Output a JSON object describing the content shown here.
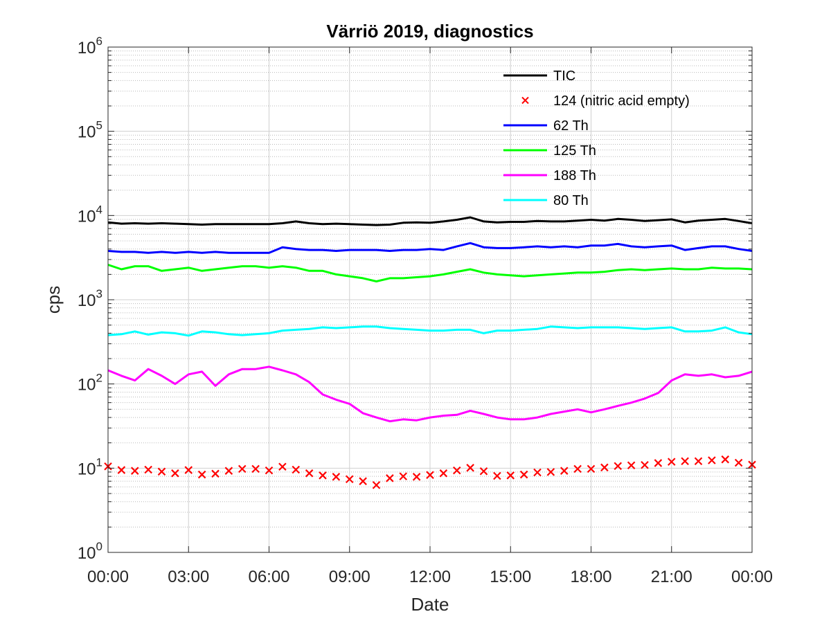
{
  "chart_data": {
    "type": "line",
    "title": "Värriö 2019, diagnostics",
    "xlabel": "Date",
    "ylabel": "cps",
    "x_ticks": [
      "00:00",
      "03:00",
      "06:00",
      "09:00",
      "12:00",
      "15:00",
      "18:00",
      "21:00",
      "00:00"
    ],
    "xlim_hours": [
      0,
      24
    ],
    "y_scale": "log",
    "ylim": [
      1,
      1000000
    ],
    "y_ticks": [
      {
        "base": "10",
        "exp": "0"
      },
      {
        "base": "10",
        "exp": "1"
      },
      {
        "base": "10",
        "exp": "2"
      },
      {
        "base": "10",
        "exp": "3"
      },
      {
        "base": "10",
        "exp": "4"
      },
      {
        "base": "10",
        "exp": "5"
      },
      {
        "base": "10",
        "exp": "6"
      }
    ],
    "grid": true,
    "legend_position": "top-right",
    "series": [
      {
        "name": "TIC",
        "color": "#000000",
        "style": "line",
        "x": [
          0,
          0.5,
          1,
          1.5,
          2,
          2.5,
          3,
          3.5,
          4,
          4.5,
          5,
          5.5,
          6,
          6.5,
          7,
          7.5,
          8,
          8.5,
          9,
          9.5,
          10,
          10.5,
          11,
          11.5,
          12,
          12.5,
          13,
          13.5,
          14,
          14.5,
          15,
          15.5,
          16,
          16.5,
          17,
          17.5,
          18,
          18.5,
          19,
          19.5,
          20,
          20.5,
          21,
          21.5,
          22,
          22.5,
          23,
          23.5,
          24
        ],
        "y": [
          8300,
          8000,
          8100,
          8000,
          8100,
          8000,
          7900,
          7800,
          7900,
          7900,
          7900,
          7900,
          7900,
          8100,
          8500,
          8100,
          7900,
          8000,
          7900,
          7800,
          7700,
          7800,
          8200,
          8300,
          8200,
          8500,
          8900,
          9500,
          8500,
          8300,
          8400,
          8400,
          8600,
          8500,
          8500,
          8700,
          8900,
          8700,
          9100,
          8900,
          8600,
          8800,
          9000,
          8300,
          8700,
          8900,
          9100,
          8600,
          8100
        ]
      },
      {
        "name": "124 (nitric acid empty)",
        "color": "#ff0000",
        "style": "marker-x",
        "x": [
          0,
          0.5,
          1,
          1.5,
          2,
          2.5,
          3,
          3.5,
          4,
          4.5,
          5,
          5.5,
          6,
          6.5,
          7,
          7.5,
          8,
          8.5,
          9,
          9.5,
          10,
          10.5,
          11,
          11.5,
          12,
          12.5,
          13,
          13.5,
          14,
          14.5,
          15,
          15.5,
          16,
          16.5,
          17,
          17.5,
          18,
          18.5,
          19,
          19.5,
          20,
          20.5,
          21,
          21.5,
          22,
          22.5,
          23,
          23.5,
          24
        ],
        "y": [
          10.5,
          9.5,
          9.3,
          9.6,
          9.1,
          8.7,
          9.5,
          8.4,
          8.6,
          9.3,
          9.8,
          9.8,
          9.4,
          10.4,
          9.6,
          8.7,
          8.2,
          7.9,
          7.4,
          7.0,
          6.3,
          7.6,
          8.0,
          7.9,
          8.3,
          8.7,
          9.4,
          10.1,
          9.2,
          8.1,
          8.2,
          8.4,
          8.9,
          9.0,
          9.3,
          9.8,
          9.8,
          10.2,
          10.6,
          10.8,
          10.9,
          11.5,
          11.9,
          12.1,
          12.1,
          12.4,
          12.7,
          11.6,
          11.0
        ]
      },
      {
        "name": "62 Th",
        "color": "#0000ff",
        "style": "line",
        "x": [
          0,
          0.5,
          1,
          1.5,
          2,
          2.5,
          3,
          3.5,
          4,
          4.5,
          5,
          5.5,
          6,
          6.5,
          7,
          7.5,
          8,
          8.5,
          9,
          9.5,
          10,
          10.5,
          11,
          11.5,
          12,
          12.5,
          13,
          13.5,
          14,
          14.5,
          15,
          15.5,
          16,
          16.5,
          17,
          17.5,
          18,
          18.5,
          19,
          19.5,
          20,
          20.5,
          21,
          21.5,
          22,
          22.5,
          23,
          23.5,
          24
        ],
        "y": [
          3800,
          3700,
          3700,
          3600,
          3700,
          3600,
          3700,
          3600,
          3700,
          3600,
          3600,
          3600,
          3600,
          4200,
          4000,
          3900,
          3900,
          3800,
          3900,
          3900,
          3900,
          3800,
          3900,
          3900,
          4000,
          3900,
          4300,
          4700,
          4200,
          4100,
          4100,
          4200,
          4300,
          4200,
          4300,
          4200,
          4400,
          4400,
          4600,
          4300,
          4200,
          4300,
          4400,
          3900,
          4100,
          4300,
          4300,
          4000,
          3800
        ]
      },
      {
        "name": "125 Th",
        "color": "#00ff00",
        "style": "line",
        "x": [
          0,
          0.5,
          1,
          1.5,
          2,
          2.5,
          3,
          3.5,
          4,
          4.5,
          5,
          5.5,
          6,
          6.5,
          7,
          7.5,
          8,
          8.5,
          9,
          9.5,
          10,
          10.5,
          11,
          11.5,
          12,
          12.5,
          13,
          13.5,
          14,
          14.5,
          15,
          15.5,
          16,
          16.5,
          17,
          17.5,
          18,
          18.5,
          19,
          19.5,
          20,
          20.5,
          21,
          21.5,
          22,
          22.5,
          23,
          23.5,
          24
        ],
        "y": [
          2600,
          2300,
          2500,
          2500,
          2200,
          2300,
          2400,
          2200,
          2300,
          2400,
          2500,
          2500,
          2400,
          2500,
          2400,
          2200,
          2200,
          2000,
          1900,
          1800,
          1650,
          1800,
          1800,
          1850,
          1900,
          2000,
          2150,
          2300,
          2100,
          2000,
          1950,
          1900,
          1950,
          2000,
          2050,
          2100,
          2100,
          2150,
          2250,
          2300,
          2250,
          2300,
          2350,
          2300,
          2300,
          2400,
          2350,
          2350,
          2300
        ]
      },
      {
        "name": "188 Th",
        "color": "#ff00ff",
        "style": "line",
        "x": [
          0,
          0.5,
          1,
          1.5,
          2,
          2.5,
          3,
          3.5,
          4,
          4.5,
          5,
          5.5,
          6,
          6.5,
          7,
          7.5,
          8,
          8.5,
          9,
          9.5,
          10,
          10.5,
          11,
          11.5,
          12,
          12.5,
          13,
          13.5,
          14,
          14.5,
          15,
          15.5,
          16,
          16.5,
          17,
          17.5,
          18,
          18.5,
          19,
          19.5,
          20,
          20.5,
          21,
          21.5,
          22,
          22.5,
          23,
          23.5,
          24
        ],
        "y": [
          145,
          125,
          110,
          150,
          125,
          100,
          130,
          140,
          95,
          130,
          150,
          150,
          160,
          145,
          130,
          105,
          75,
          65,
          58,
          45,
          40,
          36,
          38,
          37,
          40,
          42,
          43,
          48,
          44,
          40,
          38,
          38,
          40,
          44,
          47,
          50,
          46,
          50,
          55,
          60,
          67,
          78,
          110,
          130,
          125,
          130,
          120,
          125,
          140
        ]
      },
      {
        "name": "80 Th",
        "color": "#00ffff",
        "style": "line",
        "x": [
          0,
          0.5,
          1,
          1.5,
          2,
          2.5,
          3,
          3.5,
          4,
          4.5,
          5,
          5.5,
          6,
          6.5,
          7,
          7.5,
          8,
          8.5,
          9,
          9.5,
          10,
          10.5,
          11,
          11.5,
          12,
          12.5,
          13,
          13.5,
          14,
          14.5,
          15,
          15.5,
          16,
          16.5,
          17,
          17.5,
          18,
          18.5,
          19,
          19.5,
          20,
          20.5,
          21,
          21.5,
          22,
          22.5,
          23,
          23.5,
          24
        ],
        "y": [
          380,
          390,
          420,
          385,
          410,
          400,
          375,
          420,
          410,
          390,
          380,
          390,
          400,
          430,
          440,
          450,
          470,
          460,
          470,
          480,
          480,
          460,
          450,
          440,
          430,
          430,
          440,
          440,
          400,
          430,
          430,
          440,
          450,
          480,
          470,
          460,
          470,
          470,
          470,
          460,
          450,
          460,
          470,
          420,
          420,
          430,
          470,
          410,
          390
        ]
      }
    ]
  }
}
